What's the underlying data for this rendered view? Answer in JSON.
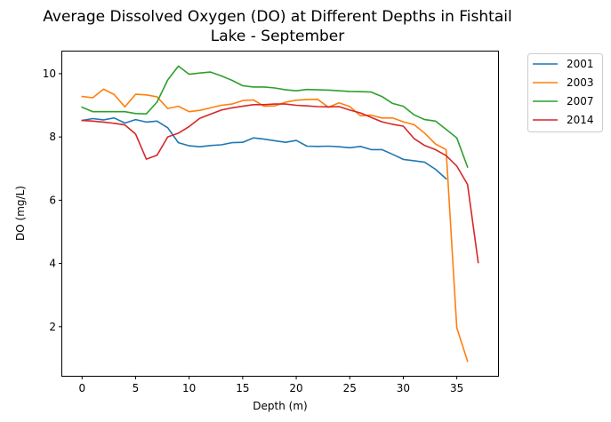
{
  "chart_data": {
    "type": "line",
    "title_lines": [
      "Average Dissolved Oxygen (DO) at Different Depths in Fishtail",
      "Lake - September"
    ],
    "xlabel": "Depth (m)",
    "ylabel": "DO (mg/L)",
    "xlim": [
      -1.85,
      38.85
    ],
    "ylim": [
      0.45,
      10.7
    ],
    "xticks": [
      0,
      5,
      10,
      15,
      20,
      25,
      30,
      35
    ],
    "yticks": [
      2,
      4,
      6,
      8,
      10
    ],
    "legend_position": "outside-top-right",
    "grid": false,
    "series": [
      {
        "name": "2001",
        "color": "#1f77b4",
        "x": [
          0,
          1,
          2,
          3,
          4,
          5,
          6,
          7,
          8,
          9,
          10,
          11,
          12,
          13,
          14,
          15,
          16,
          17,
          18,
          19,
          20,
          21,
          22,
          23,
          24,
          25,
          26,
          27,
          28,
          29,
          30,
          31,
          32,
          33,
          34
        ],
        "y": [
          8.52,
          8.58,
          8.54,
          8.6,
          8.44,
          8.55,
          8.47,
          8.5,
          8.29,
          7.82,
          7.72,
          7.69,
          7.73,
          7.75,
          7.82,
          7.83,
          7.97,
          7.93,
          7.88,
          7.83,
          7.89,
          7.71,
          7.7,
          7.71,
          7.69,
          7.66,
          7.7,
          7.6,
          7.6,
          7.45,
          7.29,
          7.25,
          7.2,
          6.98,
          6.68
        ]
      },
      {
        "name": "2003",
        "color": "#ff7f0e",
        "x": [
          0,
          1,
          2,
          3,
          4,
          5,
          6,
          7,
          8,
          9,
          10,
          11,
          12,
          13,
          14,
          15,
          16,
          17,
          18,
          19,
          20,
          21,
          22,
          23,
          24,
          25,
          26,
          27,
          28,
          29,
          30,
          31,
          32,
          33,
          34,
          35,
          36
        ],
        "y": [
          9.28,
          9.24,
          9.51,
          9.34,
          8.95,
          9.35,
          9.33,
          9.27,
          8.9,
          8.97,
          8.8,
          8.84,
          8.92,
          9.0,
          9.04,
          9.15,
          9.17,
          8.97,
          8.98,
          9.1,
          9.16,
          9.18,
          9.19,
          8.94,
          9.08,
          8.96,
          8.67,
          8.69,
          8.6,
          8.6,
          8.48,
          8.39,
          8.12,
          7.78,
          7.6,
          1.97,
          0.91
        ]
      },
      {
        "name": "2007",
        "color": "#2ca02c",
        "x": [
          0,
          1,
          2,
          3,
          4,
          5,
          6,
          7,
          8,
          9,
          10,
          11,
          12,
          13,
          14,
          15,
          16,
          17,
          18,
          19,
          20,
          21,
          22,
          23,
          24,
          25,
          26,
          27,
          28,
          29,
          30,
          31,
          32,
          33,
          34,
          35,
          36
        ],
        "y": [
          8.94,
          8.8,
          8.8,
          8.8,
          8.8,
          8.74,
          8.73,
          9.1,
          9.8,
          10.24,
          9.98,
          10.02,
          10.05,
          9.93,
          9.79,
          9.62,
          9.58,
          9.58,
          9.55,
          9.49,
          9.46,
          9.5,
          9.49,
          9.48,
          9.46,
          9.44,
          9.43,
          9.42,
          9.28,
          9.06,
          8.97,
          8.7,
          8.55,
          8.5,
          8.24,
          7.97,
          7.05
        ]
      },
      {
        "name": "2014",
        "color": "#d62728",
        "x": [
          0,
          1,
          2,
          3,
          4,
          5,
          6,
          7,
          8,
          9,
          10,
          11,
          12,
          13,
          14,
          15,
          16,
          17,
          18,
          19,
          20,
          21,
          22,
          23,
          24,
          25,
          26,
          27,
          28,
          29,
          30,
          31,
          32,
          33,
          34,
          35,
          36,
          37
        ],
        "y": [
          8.52,
          8.5,
          8.47,
          8.43,
          8.38,
          8.09,
          7.3,
          7.42,
          8.0,
          8.12,
          8.33,
          8.59,
          8.72,
          8.85,
          8.92,
          8.97,
          9.02,
          9.02,
          9.04,
          9.04,
          9.0,
          8.98,
          8.96,
          8.95,
          8.96,
          8.85,
          8.76,
          8.62,
          8.48,
          8.4,
          8.34,
          7.95,
          7.73,
          7.6,
          7.41,
          7.08,
          6.5,
          4.03
        ]
      }
    ]
  }
}
